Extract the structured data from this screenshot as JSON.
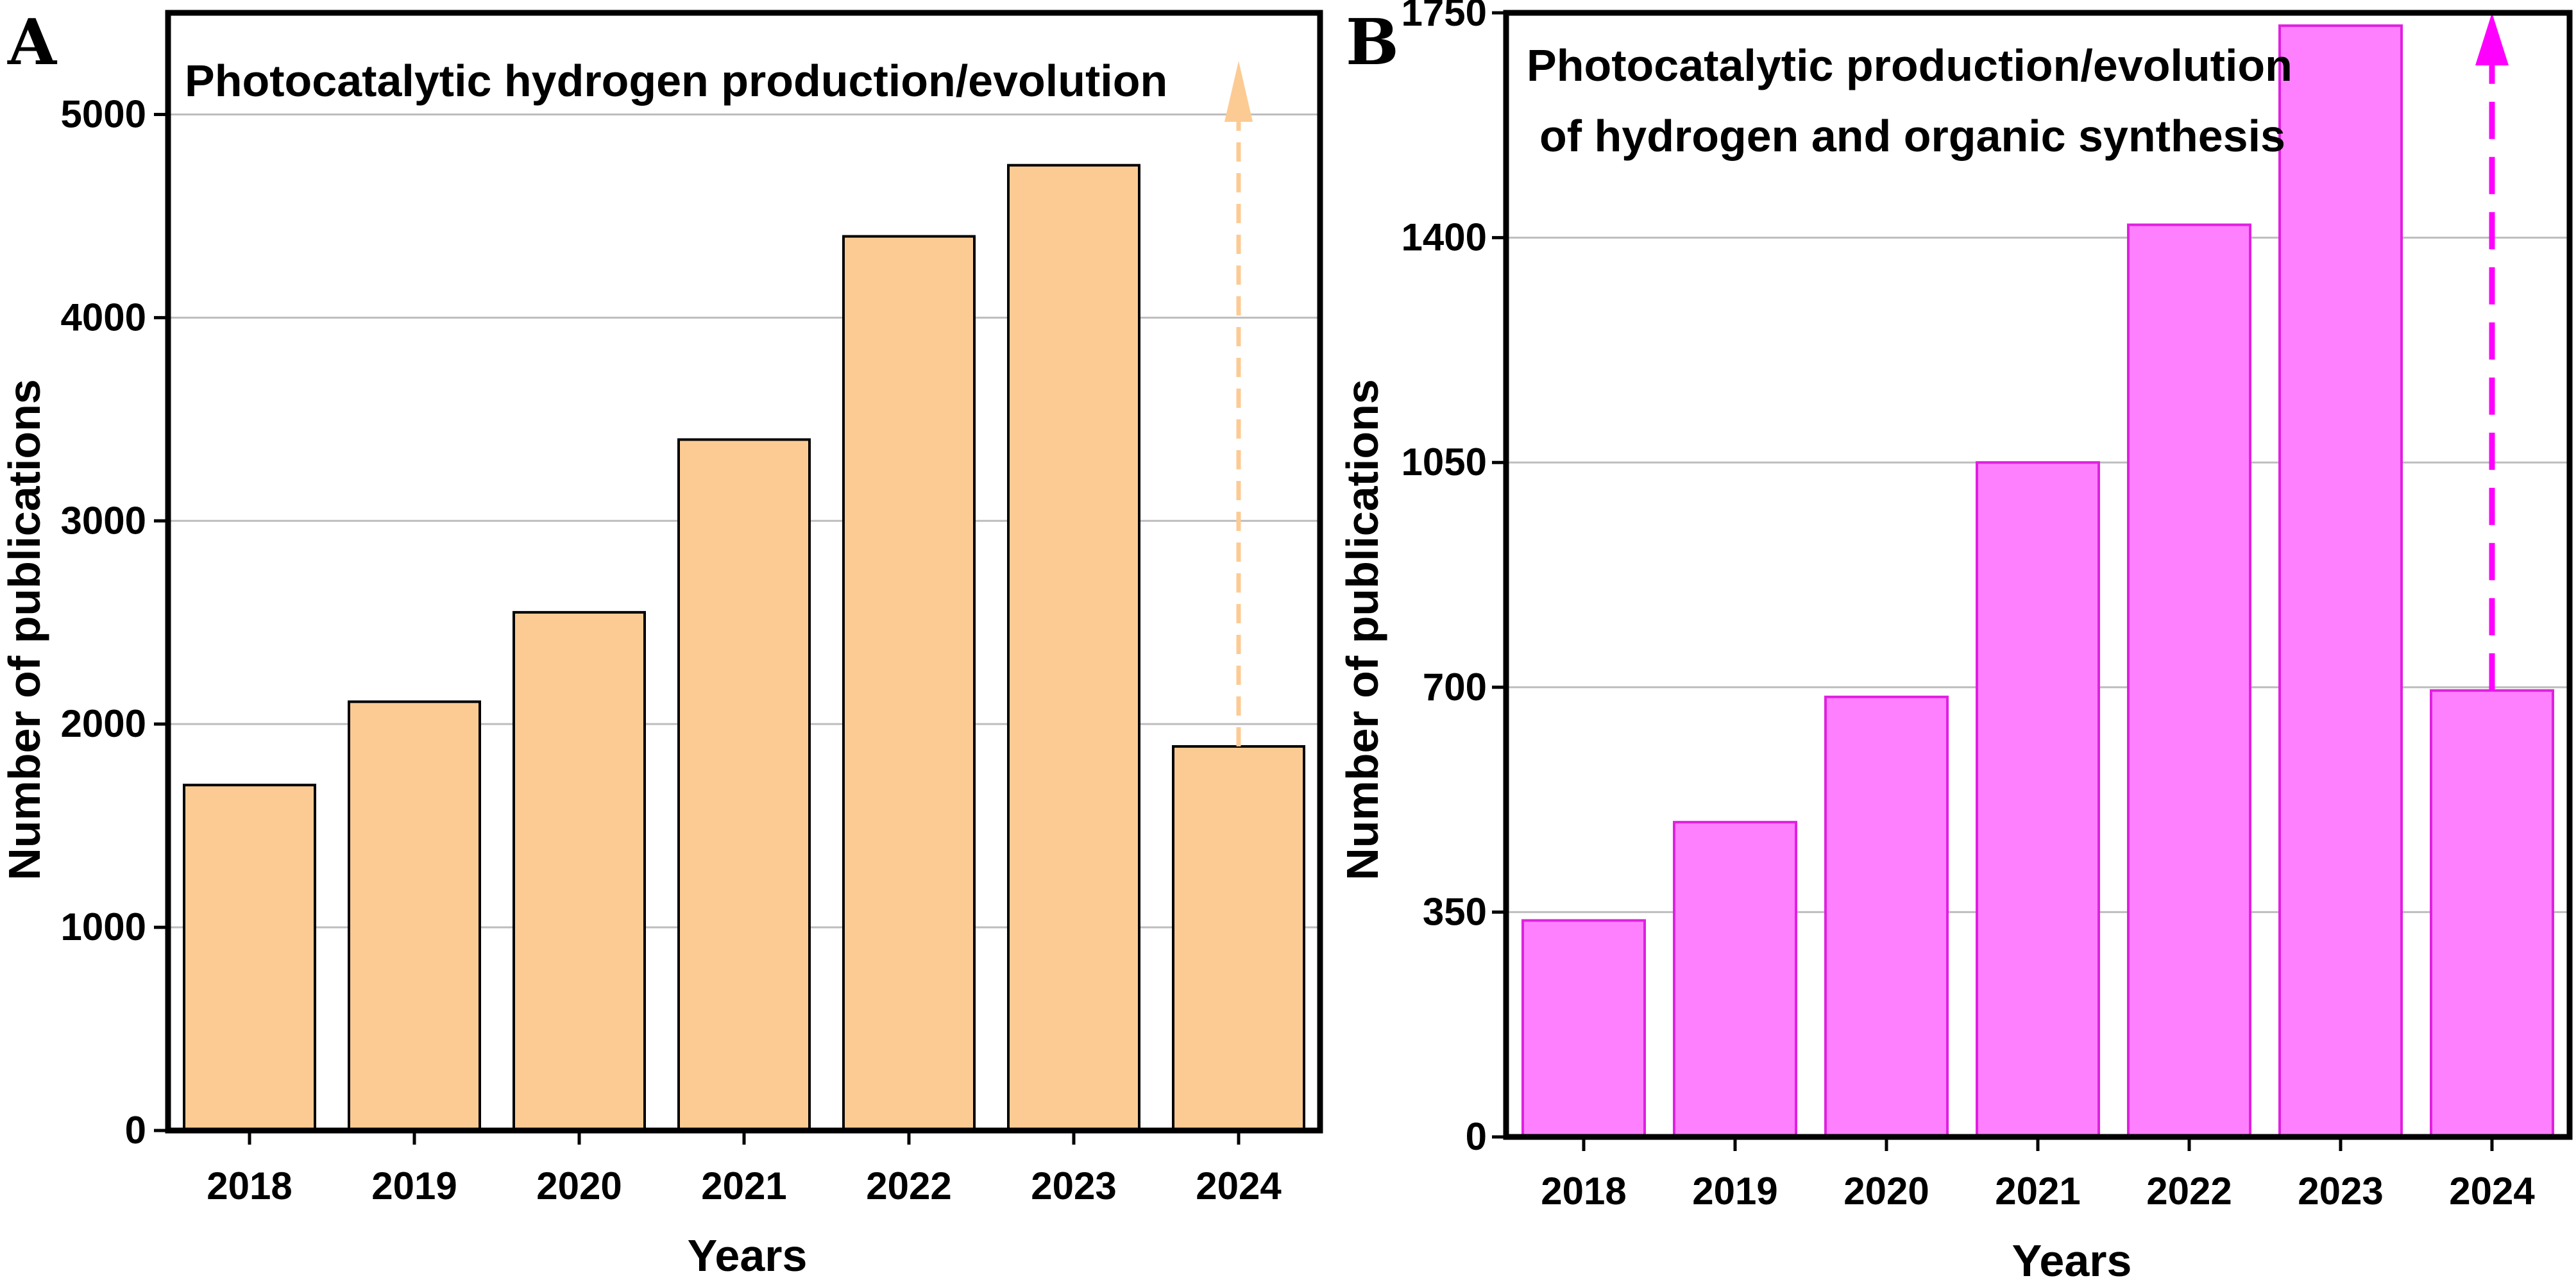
{
  "chart_data": [
    {
      "panel": "A",
      "type": "bar",
      "title": "Photocatalytic hydrogen production/evolution",
      "categories": [
        "2018",
        "2019",
        "2020",
        "2021",
        "2022",
        "2023",
        "2024"
      ],
      "values": [
        1700,
        2110,
        2550,
        3400,
        4400,
        4750,
        1890
      ],
      "xlabel": "Years",
      "ylabel": "Number of publications",
      "ylim": [
        0,
        5500
      ],
      "yticks": [
        0,
        1000,
        2000,
        3000,
        4000,
        5000
      ],
      "grid": true,
      "bar_color": "#fccb93",
      "bar_edge_color": "#000000",
      "annotation": "dashed upward arrow above the 2024 bar",
      "arrow_color": "#fccb93"
    },
    {
      "panel": "B",
      "type": "bar",
      "title": "Photocatalytic production/evolution of hydrogen and organic synthesis",
      "title_lines": [
        "Photocatalytic production/evolution",
        "of hydrogen and organic synthesis"
      ],
      "categories": [
        "2018",
        "2019",
        "2020",
        "2021",
        "2022",
        "2023",
        "2024"
      ],
      "values": [
        337,
        490,
        685,
        1050,
        1420,
        1730,
        695
      ],
      "xlabel": "Years",
      "ylabel": "Number of publications",
      "ylim": [
        0,
        1750
      ],
      "yticks": [
        0,
        350,
        700,
        1050,
        1400,
        1750
      ],
      "grid": true,
      "bar_color": "#ff80ff",
      "bar_edge_color": "#e020e0",
      "annotation": "dashed upward arrow above the 2024 bar",
      "arrow_color": "#ff00ff"
    }
  ]
}
